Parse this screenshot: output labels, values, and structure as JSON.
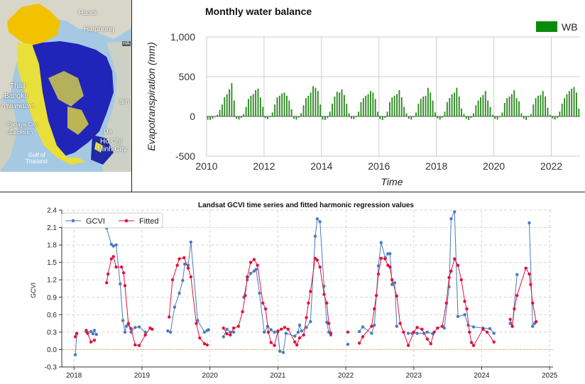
{
  "map": {
    "labels": [
      "Hanoi",
      "Haiphong",
      "Thail",
      "Bangko",
      "กรุงเทพมหา",
      "Pattaya City",
      "เมืองพัทยา",
      "Da",
      "Ho Chi",
      "Minh City",
      "Gulf of",
      "Thailand",
      "am",
      "HA"
    ]
  },
  "colors": {
    "wb_bar": "#2d8a22",
    "gcvi": "#4a7bbd",
    "fitted": "#e0123c",
    "zero_line": "#f4b183"
  },
  "chart_data": [
    {
      "type": "bar",
      "title": "Monthly water balance",
      "xlabel": "Time",
      "ylabel": "Evapotranspiration (mm)",
      "legend": [
        "WB"
      ],
      "ylim": [
        -500,
        1000
      ],
      "yticks": [
        -500,
        0,
        500,
        1000
      ],
      "ytick_labels": [
        "-500",
        "0",
        "500",
        "1,000"
      ],
      "xticks": [
        2010,
        2012,
        2014,
        2016,
        2018,
        2020,
        2022
      ],
      "x_start": 2010,
      "monthly_wb": [
        -40,
        -45,
        -30,
        -10,
        20,
        80,
        150,
        240,
        280,
        340,
        420,
        200,
        -30,
        -40,
        -20,
        30,
        120,
        220,
        260,
        280,
        330,
        350,
        240,
        120,
        -20,
        -35,
        -10,
        50,
        150,
        240,
        260,
        290,
        300,
        260,
        200,
        90,
        -30,
        -40,
        -15,
        40,
        140,
        230,
        260,
        300,
        380,
        360,
        320,
        150,
        -40,
        -45,
        -20,
        60,
        160,
        250,
        310,
        300,
        340,
        270,
        160,
        40,
        -30,
        -35,
        -10,
        60,
        180,
        230,
        260,
        280,
        320,
        300,
        220,
        60,
        -35,
        -45,
        -20,
        60,
        180,
        240,
        260,
        280,
        330,
        240,
        120,
        40,
        -30,
        -40,
        -10,
        50,
        160,
        220,
        250,
        260,
        360,
        300,
        200,
        50,
        -25,
        -40,
        -15,
        60,
        180,
        230,
        280,
        300,
        360,
        250,
        100,
        30,
        -30,
        -45,
        -20,
        40,
        140,
        200,
        240,
        270,
        320,
        200,
        120,
        20,
        -30,
        -40,
        -10,
        50,
        170,
        230,
        250,
        280,
        330,
        230,
        190,
        40,
        -30,
        -45,
        -10,
        30,
        150,
        230,
        260,
        270,
        320,
        250,
        110,
        20,
        -25,
        -40,
        -20,
        60,
        160,
        230,
        280,
        320,
        350,
        370,
        300,
        100
      ]
    },
    {
      "type": "line",
      "title": "Landsat GCVI time series and fitted harmonic regression values",
      "xlabel": "",
      "ylabel": "GCVI",
      "ylim": [
        -0.3,
        2.4
      ],
      "yticks": [
        -0.3,
        0.0,
        0.3,
        0.6,
        0.9,
        1.2,
        1.5,
        1.8,
        2.1,
        2.4
      ],
      "ytick_labels": [
        "-0.3",
        "0.0",
        "0.3",
        "0.6",
        "0.9",
        "1.2",
        "1.5",
        "1.8",
        "2.1",
        "2.4"
      ],
      "xlim": [
        2017.82,
        2025.05
      ],
      "xticks": [
        2018,
        2019,
        2020,
        2021,
        2022,
        2023,
        2024,
        2025
      ],
      "xtick_labels": [
        "2018",
        "2019",
        "2020",
        "2021",
        "2022",
        "2023",
        "2024",
        "2025"
      ],
      "series": [
        {
          "name": "GCVI",
          "points": [
            [
              2018.02,
              -0.09
            ],
            [
              2018.04,
              0.27
            ],
            [
              2018.18,
              0.31
            ],
            [
              2018.25,
              0.31
            ],
            [
              2018.28,
              0.27
            ],
            [
              2018.3,
              0.33
            ],
            [
              2018.33,
              0.26
            ],
            [
              2018.48,
              2.09
            ],
            [
              2018.55,
              1.81
            ],
            [
              2018.58,
              1.78
            ],
            [
              2018.62,
              1.8
            ],
            [
              2018.68,
              1.13
            ],
            [
              2018.72,
              0.5
            ],
            [
              2018.75,
              0.3
            ],
            [
              2018.77,
              0.4
            ],
            [
              2018.8,
              0.43
            ],
            [
              2018.84,
              0.3
            ],
            [
              2018.9,
              0.38
            ],
            [
              2018.96,
              0.39
            ],
            [
              2019.05,
              0.3
            ],
            [
              2019.38,
              0.32
            ],
            [
              2019.42,
              0.3
            ],
            [
              2019.48,
              0.73
            ],
            [
              2019.55,
              0.97
            ],
            [
              2019.6,
              1.19
            ],
            [
              2019.63,
              1.47
            ],
            [
              2019.68,
              1.45
            ],
            [
              2019.72,
              1.85
            ],
            [
              2019.82,
              0.5
            ],
            [
              2019.92,
              0.3
            ],
            [
              2019.96,
              0.33
            ],
            [
              2019.98,
              0.34
            ],
            [
              2020.2,
              0.22
            ],
            [
              2020.25,
              0.35
            ],
            [
              2020.3,
              0.3
            ],
            [
              2020.35,
              0.3
            ],
            [
              2020.5,
              0.9
            ],
            [
              2020.55,
              1.2
            ],
            [
              2020.6,
              1.31
            ],
            [
              2020.65,
              1.35
            ],
            [
              2020.68,
              1.38
            ],
            [
              2020.73,
              0.97
            ],
            [
              2020.8,
              0.3
            ],
            [
              2020.85,
              0.4
            ],
            [
              2020.9,
              0.34
            ],
            [
              2020.95,
              0.3
            ],
            [
              2021.0,
              0.3
            ],
            [
              2021.03,
              -0.03
            ],
            [
              2021.08,
              -0.05
            ],
            [
              2021.12,
              0.28
            ],
            [
              2021.25,
              0.23
            ],
            [
              2021.3,
              0.3
            ],
            [
              2021.32,
              0.42
            ],
            [
              2021.35,
              0.32
            ],
            [
              2021.42,
              0.38
            ],
            [
              2021.48,
              0.48
            ],
            [
              2021.55,
              1.95
            ],
            [
              2021.58,
              2.25
            ],
            [
              2021.62,
              2.2
            ],
            [
              2021.68,
              1.09
            ],
            [
              2021.72,
              0.47
            ],
            [
              2021.75,
              0.3
            ],
            [
              2021.78,
              0.25
            ],
            [
              2022.03,
              0.09
            ],
            [
              2022.2,
              0.31
            ],
            [
              2022.25,
              0.39
            ],
            [
              2022.38,
              0.28
            ],
            [
              2022.42,
              0.42
            ],
            [
              2022.48,
              1.44
            ],
            [
              2022.52,
              1.84
            ],
            [
              2022.58,
              1.58
            ],
            [
              2022.62,
              1.65
            ],
            [
              2022.65,
              1.65
            ],
            [
              2022.68,
              1.12
            ],
            [
              2022.72,
              1.15
            ],
            [
              2022.75,
              0.4
            ],
            [
              2022.92,
              0.28
            ],
            [
              2022.98,
              0.28
            ],
            [
              2023.05,
              0.28
            ],
            [
              2023.15,
              0.28
            ],
            [
              2023.2,
              0.3
            ],
            [
              2023.28,
              0.27
            ],
            [
              2023.45,
              0.37
            ],
            [
              2023.52,
              1.08
            ],
            [
              2023.55,
              2.25
            ],
            [
              2023.6,
              2.37
            ],
            [
              2023.65,
              0.57
            ],
            [
              2023.75,
              0.6
            ],
            [
              2023.8,
              0.42
            ],
            [
              2023.88,
              0.39
            ],
            [
              2024.02,
              0.37
            ],
            [
              2024.12,
              0.36
            ],
            [
              2024.18,
              0.28
            ],
            [
              2024.42,
              0.45
            ],
            [
              2024.45,
              0.4
            ],
            [
              2024.52,
              1.29
            ],
            [
              2024.7,
              2.18
            ],
            [
              2024.75,
              0.4
            ],
            [
              2024.78,
              0.45
            ]
          ]
        },
        {
          "name": "Fitted",
          "points": [
            [
              2018.02,
              0.22
            ],
            [
              2018.04,
              0.28
            ],
            [
              2018.18,
              0.33
            ],
            [
              2018.2,
              0.28
            ],
            [
              2018.25,
              0.13
            ],
            [
              2018.3,
              0.16
            ],
            [
              2018.48,
              1.15
            ],
            [
              2018.5,
              1.3
            ],
            [
              2018.55,
              1.56
            ],
            [
              2018.58,
              1.6
            ],
            [
              2018.62,
              1.42
            ],
            [
              2018.7,
              1.42
            ],
            [
              2018.73,
              1.32
            ],
            [
              2018.75,
              1.1
            ],
            [
              2018.8,
              0.45
            ],
            [
              2018.84,
              0.36
            ],
            [
              2018.9,
              0.08
            ],
            [
              2018.96,
              0.07
            ],
            [
              2019.05,
              0.25
            ],
            [
              2019.12,
              0.37
            ],
            [
              2019.15,
              0.35
            ],
            [
              2019.4,
              0.56
            ],
            [
              2019.45,
              1.2
            ],
            [
              2019.52,
              1.45
            ],
            [
              2019.55,
              1.56
            ],
            [
              2019.62,
              1.58
            ],
            [
              2019.68,
              1.4
            ],
            [
              2019.72,
              1.25
            ],
            [
              2019.8,
              0.45
            ],
            [
              2019.85,
              0.2
            ],
            [
              2019.92,
              0.1
            ],
            [
              2019.96,
              0.08
            ],
            [
              2020.2,
              0.37
            ],
            [
              2020.25,
              0.27
            ],
            [
              2020.3,
              0.25
            ],
            [
              2020.35,
              0.37
            ],
            [
              2020.42,
              0.4
            ],
            [
              2020.48,
              0.65
            ],
            [
              2020.52,
              0.93
            ],
            [
              2020.55,
              1.25
            ],
            [
              2020.6,
              1.5
            ],
            [
              2020.65,
              1.55
            ],
            [
              2020.7,
              1.45
            ],
            [
              2020.78,
              0.8
            ],
            [
              2020.82,
              0.7
            ],
            [
              2020.86,
              0.3
            ],
            [
              2020.9,
              0.12
            ],
            [
              2020.95,
              0.07
            ],
            [
              2021.0,
              0.32
            ],
            [
              2021.05,
              0.35
            ],
            [
              2021.1,
              0.38
            ],
            [
              2021.15,
              0.35
            ],
            [
              2021.25,
              0.13
            ],
            [
              2021.28,
              0.08
            ],
            [
              2021.32,
              0.2
            ],
            [
              2021.38,
              0.25
            ],
            [
              2021.42,
              0.55
            ],
            [
              2021.45,
              0.8
            ],
            [
              2021.48,
              1.0
            ],
            [
              2021.55,
              1.57
            ],
            [
              2021.58,
              1.54
            ],
            [
              2021.62,
              1.42
            ],
            [
              2021.68,
              0.95
            ],
            [
              2021.72,
              0.8
            ],
            [
              2021.75,
              0.45
            ],
            [
              2021.78,
              0.28
            ],
            [
              2022.03,
              0.3
            ],
            [
              2022.2,
              0.11
            ],
            [
              2022.25,
              0.22
            ],
            [
              2022.38,
              0.4
            ],
            [
              2022.42,
              0.7
            ],
            [
              2022.45,
              0.93
            ],
            [
              2022.48,
              1.3
            ],
            [
              2022.52,
              1.57
            ],
            [
              2022.58,
              1.56
            ],
            [
              2022.62,
              1.45
            ],
            [
              2022.65,
              1.42
            ],
            [
              2022.68,
              1.2
            ],
            [
              2022.75,
              0.92
            ],
            [
              2022.8,
              0.45
            ],
            [
              2022.85,
              0.3
            ],
            [
              2022.92,
              0.07
            ],
            [
              2023.0,
              0.3
            ],
            [
              2023.05,
              0.38
            ],
            [
              2023.12,
              0.35
            ],
            [
              2023.2,
              0.18
            ],
            [
              2023.25,
              0.1
            ],
            [
              2023.3,
              0.3
            ],
            [
              2023.35,
              0.37
            ],
            [
              2023.42,
              0.4
            ],
            [
              2023.48,
              0.8
            ],
            [
              2023.52,
              1.24
            ],
            [
              2023.55,
              1.35
            ],
            [
              2023.6,
              1.56
            ],
            [
              2023.65,
              1.45
            ],
            [
              2023.7,
              1.2
            ],
            [
              2023.75,
              0.83
            ],
            [
              2023.78,
              0.7
            ],
            [
              2023.82,
              0.3
            ],
            [
              2023.85,
              0.12
            ],
            [
              2023.88,
              0.07
            ],
            [
              2024.02,
              0.35
            ],
            [
              2024.08,
              0.3
            ],
            [
              2024.18,
              0.13
            ],
            [
              2024.42,
              0.52
            ],
            [
              2024.45,
              0.4
            ],
            [
              2024.48,
              0.7
            ],
            [
              2024.52,
              0.93
            ],
            [
              2024.65,
              1.4
            ],
            [
              2024.7,
              1.3
            ],
            [
              2024.72,
              1.12
            ],
            [
              2024.75,
              0.8
            ],
            [
              2024.8,
              0.48
            ]
          ]
        }
      ]
    }
  ]
}
